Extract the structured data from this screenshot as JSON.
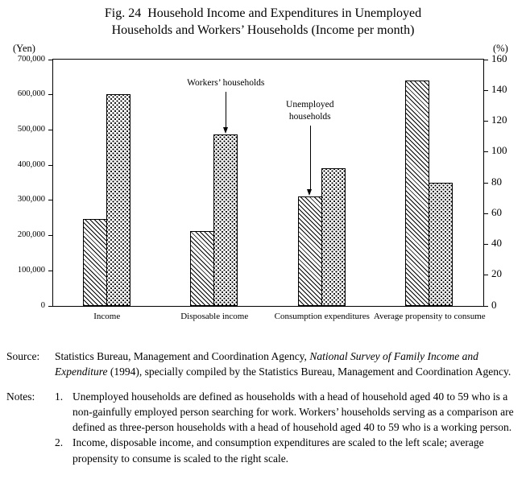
{
  "title": {
    "line1": "Fig. 24  Household Income and Expenditures in Unemployed",
    "line2": "Households and Workers’ Households (Income per month)"
  },
  "chart_data": {
    "type": "bar",
    "title": "Household Income and Expenditures in Unemployed Households and Workers' Households (Income per month)",
    "categories": [
      "Income",
      "Disposable income",
      "Consumption expenditures",
      "Average propensity to consume"
    ],
    "left_axis": {
      "label": "(Yen)",
      "min": 0,
      "max": 700000,
      "ticks": [
        "700,000",
        "600,000",
        "500,000",
        "400,000",
        "300,000",
        "200,000",
        "100,000",
        "0"
      ]
    },
    "right_axis": {
      "label": "(%)",
      "min": 0,
      "max": 160,
      "ticks": [
        "160",
        "140",
        "120",
        "100",
        "80",
        "60",
        "40",
        "20",
        "0"
      ]
    },
    "series": [
      {
        "name": "Unemployed households",
        "pattern": "diagonal-hatch",
        "values": [
          245000,
          212000,
          310000,
          146
        ],
        "units": [
          "yen",
          "yen",
          "yen",
          "percent"
        ]
      },
      {
        "name": "Workers' households",
        "pattern": "dotted",
        "values": [
          600000,
          487000,
          390000,
          80
        ],
        "units": [
          "yen",
          "yen",
          "yen",
          "percent"
        ]
      }
    ],
    "annotations": [
      {
        "text": "Workers’ households",
        "target_series": 1,
        "target_category": 1
      },
      {
        "text": "Unemployed households",
        "target_series": 0,
        "target_category": 2
      }
    ],
    "legend_position": "none",
    "grid": false,
    "scaling_note": "Income, disposable income, and consumption expenditures on left scale (yen); average propensity to consume on right scale (%)."
  },
  "source": {
    "label": "Source:",
    "text_before": "Statistics Bureau, Management and Coordination Agency, ",
    "italic": "National Survey of Family Income and Expenditure",
    "text_after": " (1994), specially compiled by the Statistics Bureau, Management and Coordination Agency."
  },
  "notes": {
    "label": "Notes:",
    "items": [
      {
        "num": "1.",
        "text": "Unemployed households are defined as households with a head of household aged 40 to 59 who is a non-gainfully employed person searching for work. Workers’ households serving as a comparison are defined as three-person households with a head of household aged 40 to 59 who is a working person."
      },
      {
        "num": "2.",
        "text": "Income, disposable income, and consumption expenditures are scaled to the left scale; average propensity to consume is scaled to the right scale."
      }
    ]
  }
}
